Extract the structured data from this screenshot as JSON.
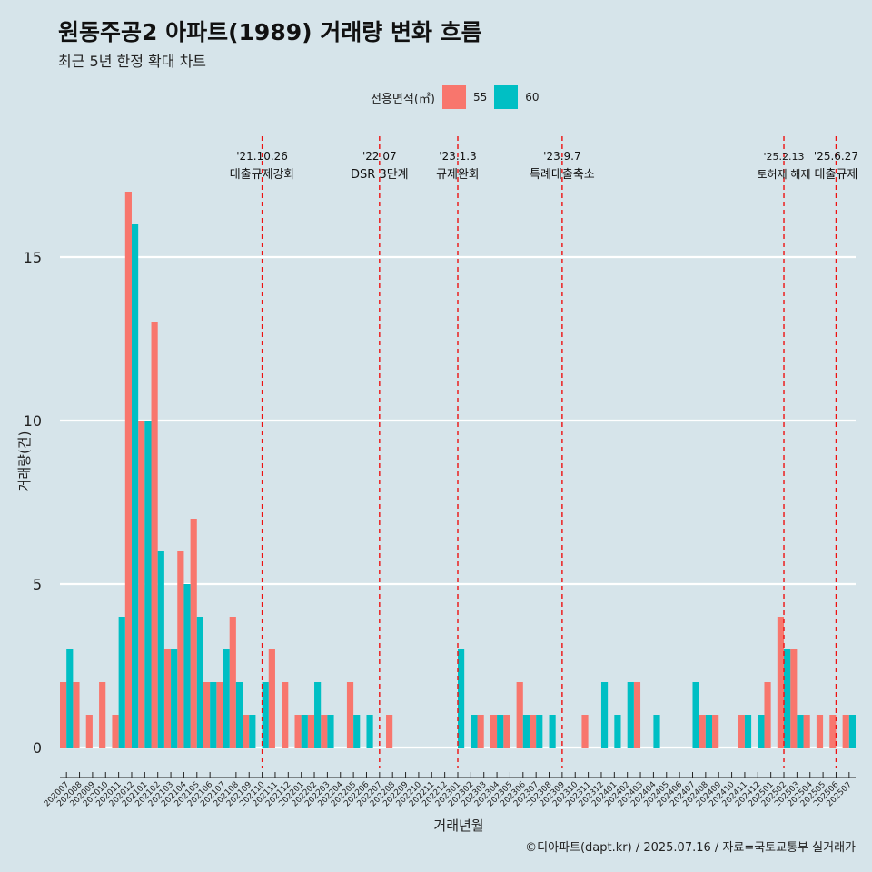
{
  "title": "원동주공2 아파트(1989) 거래량 변화 흐름",
  "subtitle": "최근 5년 한정 확대 차트",
  "caption": "©디아파트(dapt.kr) / 2025.07.16 / 자료=국토교통부 실거래가",
  "legend": {
    "title": "전용면적(㎡)",
    "items": [
      {
        "label": "55",
        "color": "#f8766d"
      },
      {
        "label": "60",
        "color": "#00bfc4"
      }
    ]
  },
  "chart_data": {
    "type": "bar",
    "xlabel": "거래년월",
    "ylabel": "거래량(건)",
    "ylim": [
      0,
      17
    ],
    "yticks": [
      0,
      5,
      10,
      15
    ],
    "grid": true,
    "legend_position": "top",
    "categories": [
      "202007",
      "202008",
      "202009",
      "202010",
      "202011",
      "202012",
      "202101",
      "202102",
      "202103",
      "202104",
      "202105",
      "202106",
      "202107",
      "202108",
      "202109",
      "202110",
      "202111",
      "202112",
      "202201",
      "202202",
      "202203",
      "202204",
      "202205",
      "202206",
      "202207",
      "202208",
      "202209",
      "202210",
      "202211",
      "202212",
      "202301",
      "202302",
      "202303",
      "202304",
      "202305",
      "202306",
      "202307",
      "202308",
      "202309",
      "202310",
      "202311",
      "202312",
      "202401",
      "202402",
      "202403",
      "202404",
      "202405",
      "202406",
      "202407",
      "202408",
      "202409",
      "202410",
      "202411",
      "202412",
      "202501",
      "202502",
      "202503",
      "202504",
      "202505",
      "202506",
      "202507"
    ],
    "series": [
      {
        "name": "55",
        "color": "#f8766d",
        "values": [
          2,
          2,
          1,
          2,
          1,
          17,
          10,
          13,
          3,
          6,
          7,
          2,
          2,
          4,
          1,
          0,
          3,
          2,
          1,
          1,
          1,
          0,
          2,
          0,
          0,
          1,
          0,
          0,
          0,
          0,
          0,
          0,
          1,
          1,
          1,
          2,
          1,
          0,
          0,
          0,
          1,
          0,
          0,
          0,
          2,
          0,
          0,
          0,
          0,
          1,
          1,
          0,
          1,
          0,
          2,
          4,
          3,
          1,
          1,
          1,
          1
        ]
      },
      {
        "name": "60",
        "color": "#00bfc4",
        "values": [
          3,
          0,
          0,
          0,
          4,
          16,
          10,
          6,
          3,
          5,
          4,
          2,
          3,
          2,
          1,
          2,
          0,
          0,
          1,
          2,
          1,
          0,
          1,
          1,
          0,
          0,
          0,
          0,
          0,
          0,
          3,
          1,
          0,
          1,
          0,
          1,
          1,
          1,
          0,
          0,
          0,
          2,
          1,
          2,
          0,
          1,
          0,
          0,
          2,
          1,
          0,
          0,
          1,
          1,
          0,
          3,
          1,
          0,
          0,
          0,
          1
        ]
      }
    ],
    "annotations": [
      {
        "month": "202110",
        "date": "'21.10.26",
        "label": "대출규제강화"
      },
      {
        "month": "202207",
        "date": "'22.07",
        "label": "DSR 3단계"
      },
      {
        "month": "202301",
        "date": "'23.1.3",
        "label": "규제완화"
      },
      {
        "month": "202309",
        "date": "'23.9.7",
        "label": "특례대출축소"
      },
      {
        "month": "202502",
        "date": "'25.2.13",
        "label": "토허제 해제"
      },
      {
        "month": "202506",
        "date": "'25.6.27",
        "label": "대출규제"
      }
    ]
  }
}
